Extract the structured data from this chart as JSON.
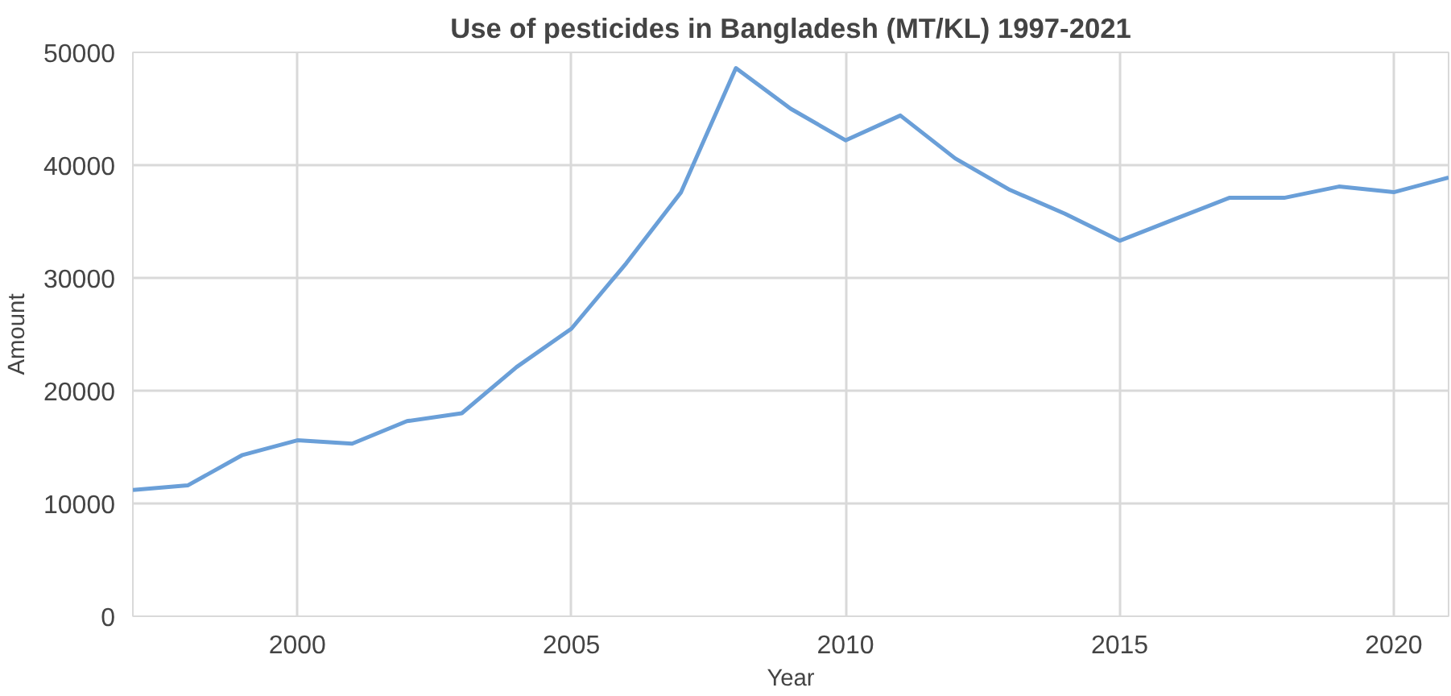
{
  "chart_data": {
    "type": "line",
    "title": "Use of pesticides in Bangladesh (MT/KL) 1997-2021",
    "xlabel": "Year",
    "ylabel": "Amount",
    "x": [
      1997,
      1998,
      1999,
      2000,
      2001,
      2002,
      2003,
      2004,
      2005,
      2006,
      2007,
      2008,
      2009,
      2010,
      2011,
      2012,
      2013,
      2014,
      2015,
      2016,
      2017,
      2018,
      2019,
      2020,
      2021
    ],
    "series": [
      {
        "color": "#6a9fd8",
        "values": [
          11200,
          11600,
          14300,
          15600,
          15300,
          17300,
          18000,
          22100,
          25500,
          31300,
          37600,
          48600,
          45000,
          42200,
          44400,
          40600,
          37800,
          35700,
          33300,
          35200,
          37100,
          37100,
          38100,
          37600,
          38900
        ]
      }
    ],
    "xlim": [
      1997,
      2021
    ],
    "ylim": [
      0,
      50000
    ],
    "xticks": [
      2000,
      2005,
      2010,
      2015,
      2020
    ],
    "yticks": [
      0,
      10000,
      20000,
      30000,
      40000,
      50000
    ],
    "grid": true,
    "marker": "none",
    "line_style": "solid"
  }
}
